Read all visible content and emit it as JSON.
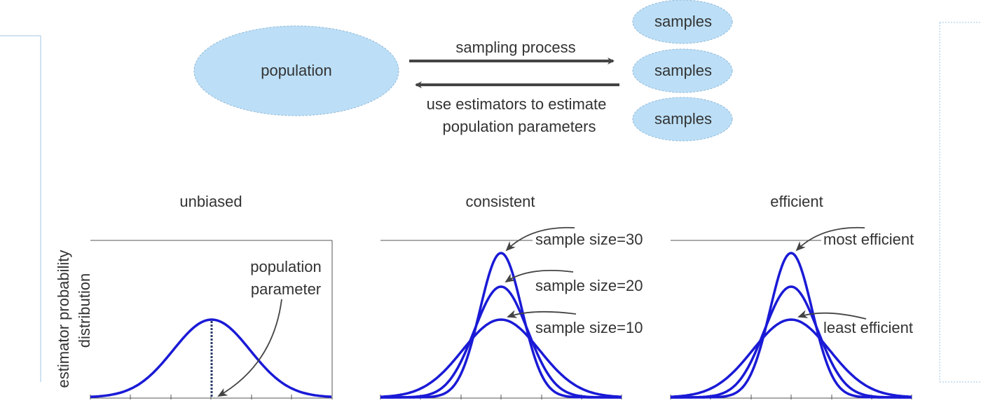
{
  "top": {
    "population": "population",
    "samples": [
      "samples",
      "samples",
      "samples"
    ],
    "forward_arrow_label": "sampling process",
    "backward_arrow_label_lines": [
      "use estimators to estimate",
      "population parameters"
    ]
  },
  "panels": {
    "unbiased": {
      "title": "unbiased",
      "annotation_lines": [
        "population",
        "parameter"
      ]
    },
    "consistent": {
      "title": "consistent",
      "labels": [
        "sample size=30",
        "sample size=20",
        "sample size=10"
      ]
    },
    "efficient": {
      "title": "efficient",
      "labels": [
        "most efficient",
        "least efficient"
      ]
    }
  },
  "ylabel_lines": [
    "estimator probability",
    "distribution"
  ],
  "colors": {
    "ellipse_fill": "#bcdff7",
    "ellipse_stroke": "#8fb8d8",
    "curve": "#1a1ad6",
    "arrow": "#444444",
    "text": "#333333",
    "frame": "#555555",
    "dotted_line": "#2a3b6a"
  }
}
